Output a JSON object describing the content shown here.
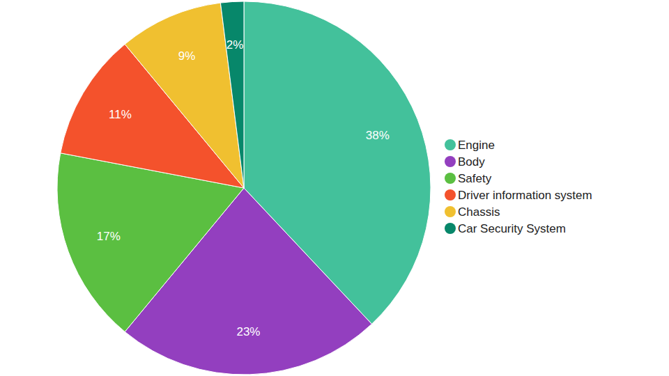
{
  "chart_data": {
    "type": "pie",
    "categories": [
      "Engine",
      "Body",
      "Safety",
      "Driver information system",
      "Chassis",
      "Car Security System"
    ],
    "values": [
      38,
      23,
      17,
      11,
      9,
      2
    ],
    "value_labels": [
      "38%",
      "23%",
      "17%",
      "11%",
      "9%",
      "2%"
    ],
    "colors": [
      "#43c19b",
      "#933fbf",
      "#5bbf41",
      "#f4522c",
      "#f0c030",
      "#07876a"
    ],
    "data_labels": true,
    "legend": "right"
  }
}
